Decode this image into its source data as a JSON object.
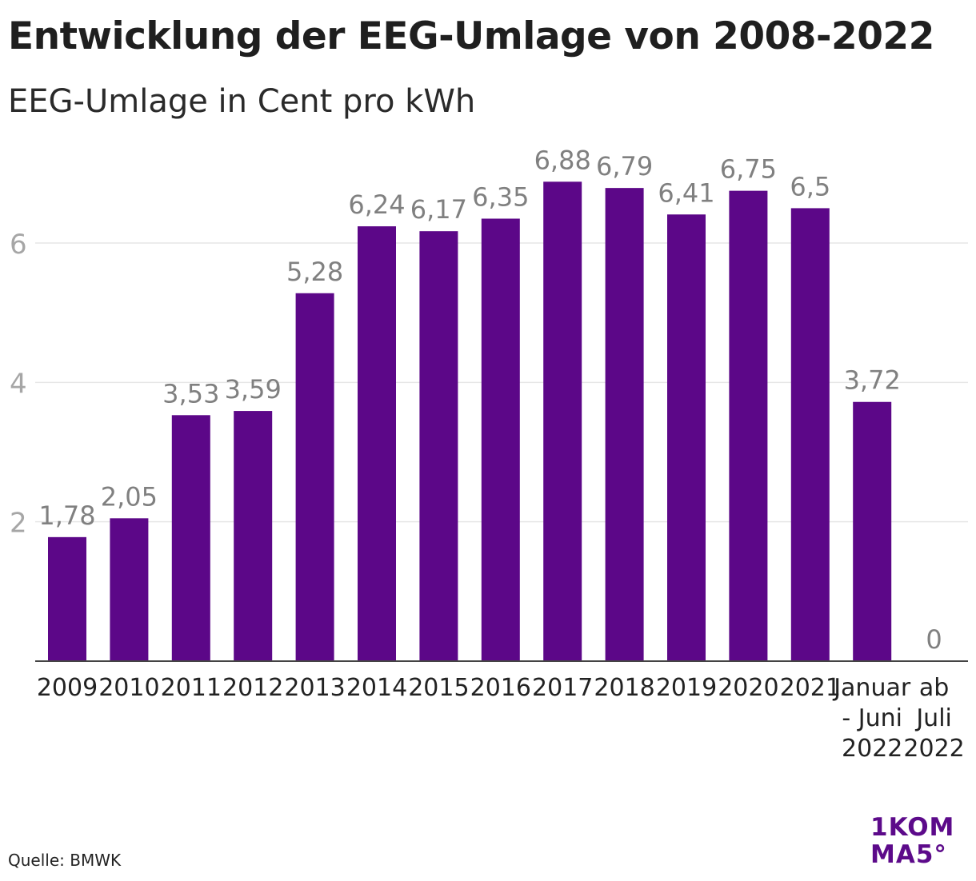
{
  "title": "Entwicklung der EEG-Umlage von 2008-2022",
  "subtitle": "EEG-Umlage in Cent pro kWh",
  "source": "Quelle: BMWK",
  "logo": {
    "line1": "1KOM",
    "line2": "MA5°"
  },
  "colors": {
    "bar": "#5c0788",
    "grid": "#e6e6e6",
    "axis": "#444444",
    "value_label": "#808080",
    "tick_label": "#a6a6a6",
    "logo": "#5c0a8a"
  },
  "chart_data": {
    "type": "bar",
    "categories": [
      "2009",
      "2010",
      "2011",
      "2012",
      "2013",
      "2014",
      "2015",
      "2016",
      "2017",
      "2018",
      "2019",
      "2020",
      "2021",
      "Januar - Juni 2022",
      "ab Juli 2022"
    ],
    "category_lines": [
      [
        "2009"
      ],
      [
        "2010"
      ],
      [
        "2011"
      ],
      [
        "2012"
      ],
      [
        "2013"
      ],
      [
        "2014"
      ],
      [
        "2015"
      ],
      [
        "2016"
      ],
      [
        "2017"
      ],
      [
        "2018"
      ],
      [
        "2019"
      ],
      [
        "2020"
      ],
      [
        "2021"
      ],
      [
        "Januar",
        "- Juni",
        "2022"
      ],
      [
        "ab",
        "Juli",
        "2022"
      ]
    ],
    "values": [
      1.78,
      2.05,
      3.53,
      3.59,
      5.28,
      6.24,
      6.17,
      6.35,
      6.88,
      6.79,
      6.41,
      6.75,
      6.5,
      3.72,
      0
    ],
    "value_labels": [
      "1,78",
      "2,05",
      "3,53",
      "3,59",
      "5,28",
      "6,24",
      "6,17",
      "6,35",
      "6,88",
      "6,79",
      "6,41",
      "6,75",
      "6,5",
      "3,72",
      "0"
    ],
    "yticks": [
      2,
      4,
      6
    ],
    "ylim": [
      0,
      7.5
    ],
    "grid": true,
    "xlabel": "",
    "ylabel": ""
  }
}
